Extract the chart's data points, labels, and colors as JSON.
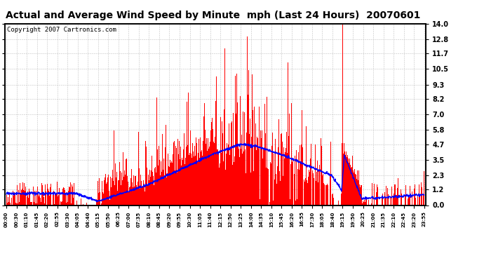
{
  "title": "Actual and Average Wind Speed by Minute  mph (Last 24 Hours)  20070601",
  "copyright": "Copyright 2007 Cartronics.com",
  "yticks": [
    0.0,
    1.2,
    2.3,
    3.5,
    4.7,
    5.8,
    7.0,
    8.2,
    9.3,
    10.5,
    11.7,
    12.8,
    14.0
  ],
  "ylim": [
    0.0,
    14.0
  ],
  "bar_color": "#FF0000",
  "line_color": "#0000FF",
  "background_color": "#FFFFFF",
  "grid_color": "#BBBBBB",
  "title_fontsize": 10,
  "copyright_fontsize": 6.5,
  "xtick_labels": [
    "00:00",
    "00:30",
    "01:10",
    "01:45",
    "02:20",
    "02:55",
    "03:30",
    "04:05",
    "04:40",
    "05:15",
    "05:50",
    "06:25",
    "07:00",
    "07:35",
    "08:10",
    "08:45",
    "09:20",
    "09:55",
    "10:30",
    "11:05",
    "11:40",
    "12:15",
    "12:50",
    "13:25",
    "14:00",
    "14:35",
    "15:10",
    "15:45",
    "16:20",
    "16:55",
    "17:30",
    "18:05",
    "18:40",
    "19:15",
    "19:50",
    "20:25",
    "21:00",
    "21:35",
    "22:10",
    "22:45",
    "23:20",
    "23:55"
  ],
  "num_minutes": 1440
}
